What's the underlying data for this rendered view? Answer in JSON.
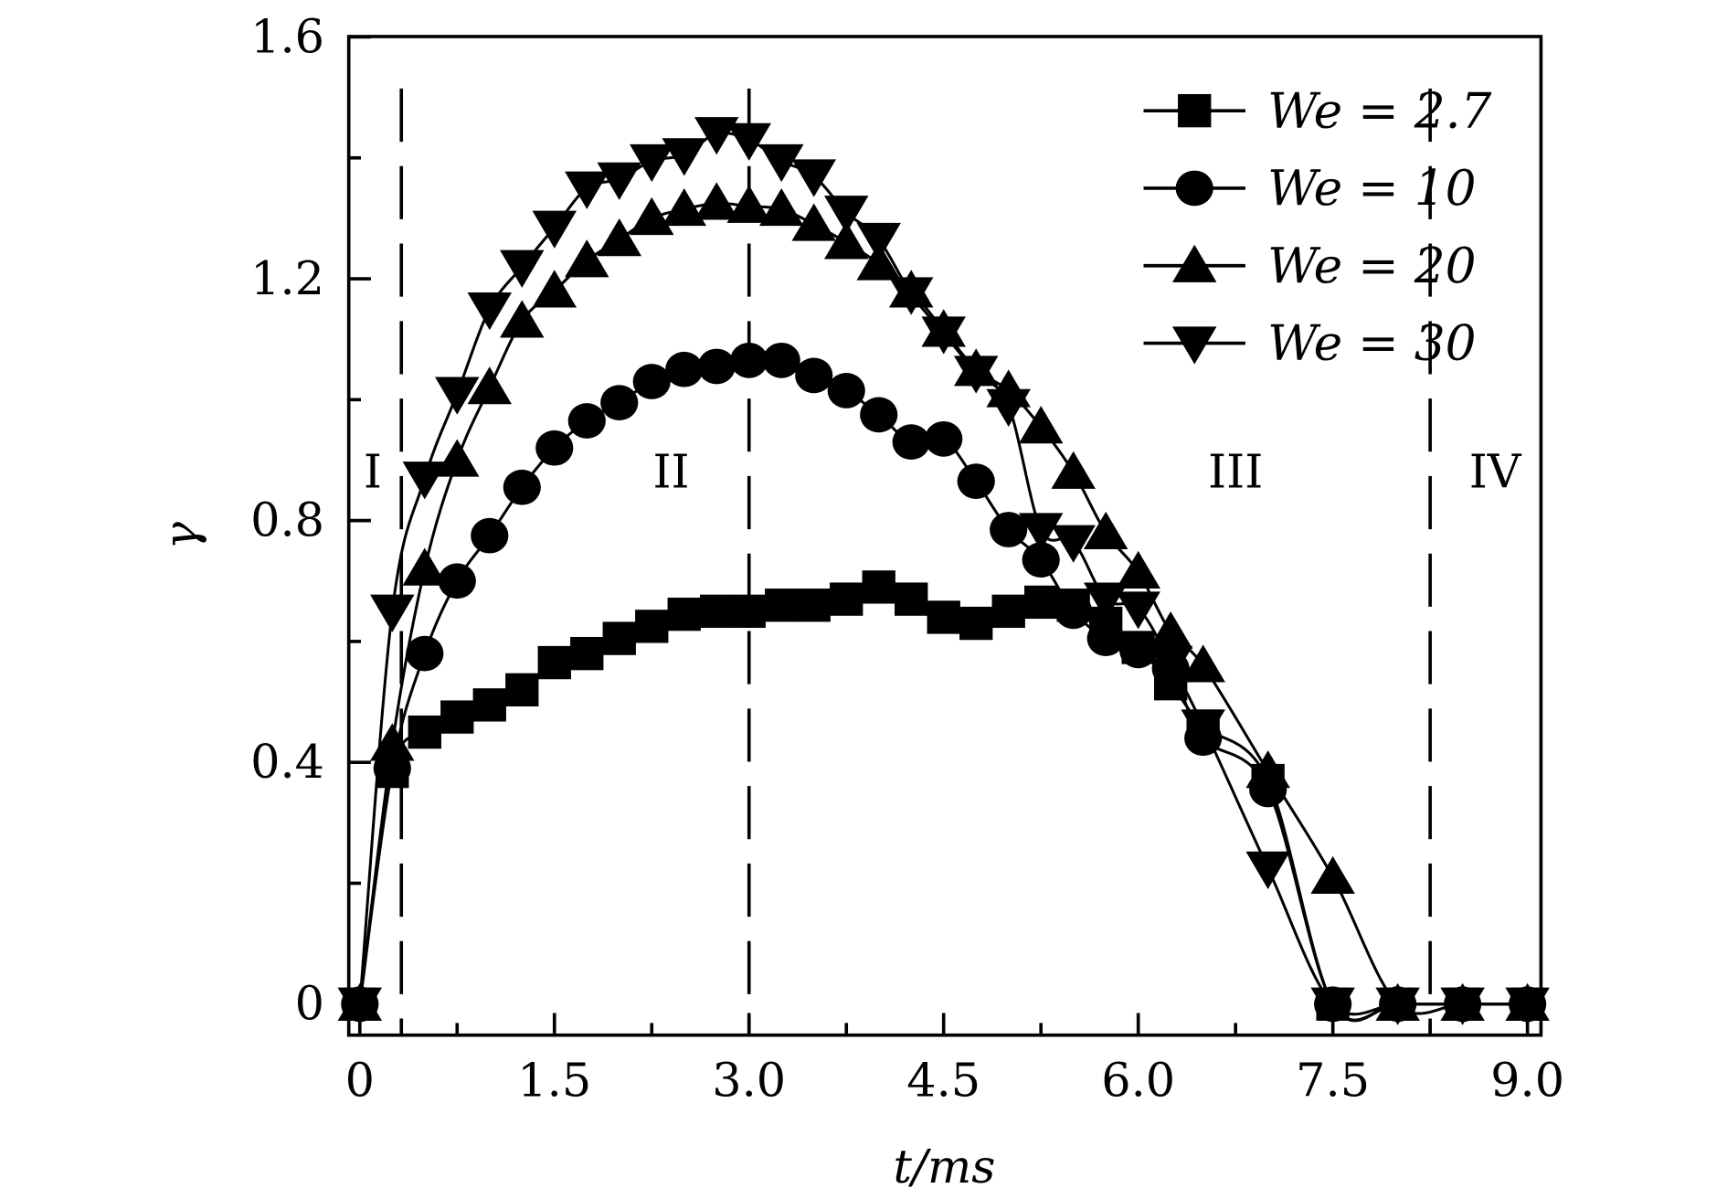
{
  "chart_data": {
    "type": "line",
    "xlabel": "t/ms",
    "ylabel": "γ",
    "xlim": [
      -0.085,
      9.1
    ],
    "ylim": [
      -0.05,
      1.6
    ],
    "xticks": [
      0,
      1.5,
      3.0,
      4.5,
      6.0,
      7.5,
      9.0
    ],
    "xtick_labels": [
      "0",
      "1.5",
      "3.0",
      "4.5",
      "6.0",
      "7.5",
      "9.0"
    ],
    "yticks": [
      0,
      0.4,
      0.8,
      1.2,
      1.6
    ],
    "ytick_labels": [
      "0",
      "0.4",
      "0.8",
      "1.2",
      "1.6"
    ],
    "grid": false,
    "legend_position": "top-right",
    "x": [
      0,
      0.25,
      0.5,
      0.75,
      1.0,
      1.25,
      1.5,
      1.75,
      2.0,
      2.25,
      2.5,
      2.75,
      3.0,
      3.25,
      3.5,
      3.75,
      4.0,
      4.25,
      4.5,
      4.75,
      5.0,
      5.25,
      5.5,
      5.75,
      6.0,
      6.25,
      6.5,
      7.0,
      7.5,
      8.0,
      8.5,
      9.0
    ],
    "series": [
      {
        "name": "We = 2.7",
        "marker": "square",
        "values": [
          0,
          0.385,
          0.45,
          0.475,
          0.495,
          0.52,
          0.565,
          0.58,
          0.605,
          0.625,
          0.645,
          0.65,
          0.65,
          0.66,
          0.66,
          0.67,
          0.69,
          0.67,
          0.64,
          0.63,
          0.65,
          0.665,
          0.66,
          0.63,
          0.59,
          0.53,
          0.46,
          0.37,
          0,
          0,
          0,
          0
        ]
      },
      {
        "name": "We = 10",
        "marker": "circle",
        "values": [
          0,
          0.39,
          0.58,
          0.7,
          0.775,
          0.855,
          0.92,
          0.965,
          0.995,
          1.03,
          1.05,
          1.055,
          1.065,
          1.065,
          1.04,
          1.015,
          0.975,
          0.93,
          0.935,
          0.865,
          0.785,
          0.735,
          0.65,
          0.605,
          0.585,
          0.555,
          0.44,
          0.355,
          0,
          0,
          0,
          0
        ]
      },
      {
        "name": "We = 20",
        "marker": "triangle-up",
        "values": [
          0,
          0.43,
          0.72,
          0.9,
          1.02,
          1.13,
          1.18,
          1.23,
          1.265,
          1.3,
          1.315,
          1.325,
          1.32,
          1.315,
          1.29,
          1.26,
          1.225,
          1.18,
          1.115,
          1.05,
          1.015,
          0.955,
          0.88,
          0.78,
          0.715,
          0.615,
          0.56,
          0.385,
          0.21,
          0,
          0,
          0
        ]
      },
      {
        "name": "We = 30",
        "marker": "triangle-down",
        "values": [
          0,
          0.65,
          0.87,
          1.01,
          1.15,
          1.22,
          1.285,
          1.35,
          1.365,
          1.395,
          1.405,
          1.44,
          1.43,
          1.395,
          1.37,
          1.31,
          1.265,
          1.175,
          1.11,
          1.045,
          0.99,
          0.785,
          0.765,
          0.67,
          0.655,
          0.565,
          0.46,
          0.225,
          0,
          0,
          0,
          0
        ]
      }
    ],
    "vlines": [
      0.32,
      3.0,
      8.25
    ],
    "annotations": [
      {
        "text": "I",
        "x": 0.1,
        "y": 0.88
      },
      {
        "text": "II",
        "x": 2.4,
        "y": 0.88
      },
      {
        "text": "III",
        "x": 6.75,
        "y": 0.88
      },
      {
        "text": "IV",
        "x": 8.75,
        "y": 0.88
      }
    ]
  }
}
